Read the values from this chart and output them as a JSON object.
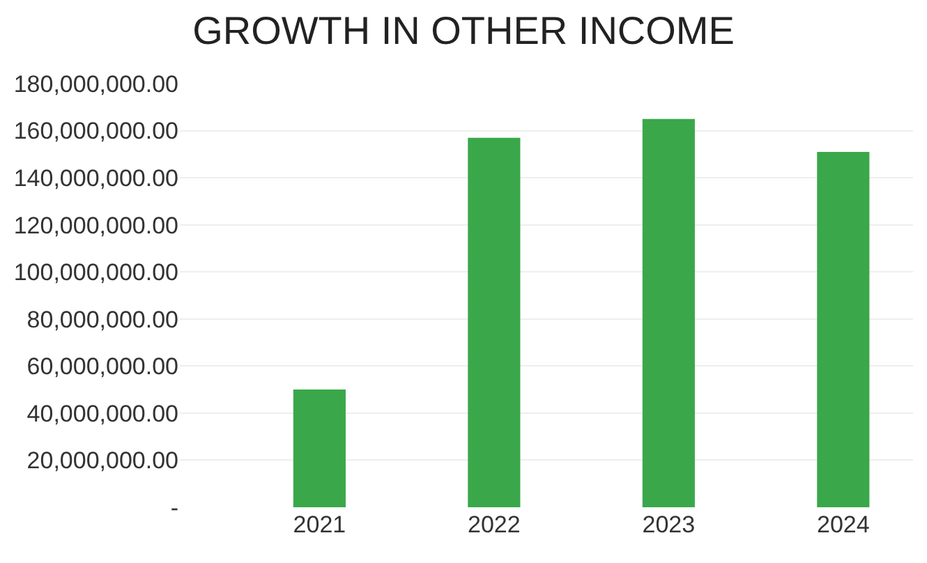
{
  "chart_data": {
    "type": "bar",
    "title": "GROWTH IN OTHER INCOME",
    "categories": [
      "2021",
      "2022",
      "2023",
      "2024"
    ],
    "values": [
      50000000,
      157000000,
      165000000,
      151000000
    ],
    "color": "#3aa84a",
    "ylim": [
      0,
      180000000
    ],
    "yticks": [
      {
        "value": 0,
        "label": "-"
      },
      {
        "value": 20000000,
        "label": "20,000,000.00"
      },
      {
        "value": 40000000,
        "label": "40,000,000.00"
      },
      {
        "value": 60000000,
        "label": "60,000,000.00"
      },
      {
        "value": 80000000,
        "label": "80,000,000.00"
      },
      {
        "value": 100000000,
        "label": "100,000,000.00"
      },
      {
        "value": 120000000,
        "label": "120,000,000.00"
      },
      {
        "value": 140000000,
        "label": "140,000,000.00"
      },
      {
        "value": 160000000,
        "label": "160,000,000.00"
      },
      {
        "value": 180000000,
        "label": "180,000,000.00"
      }
    ],
    "grid": "y"
  }
}
